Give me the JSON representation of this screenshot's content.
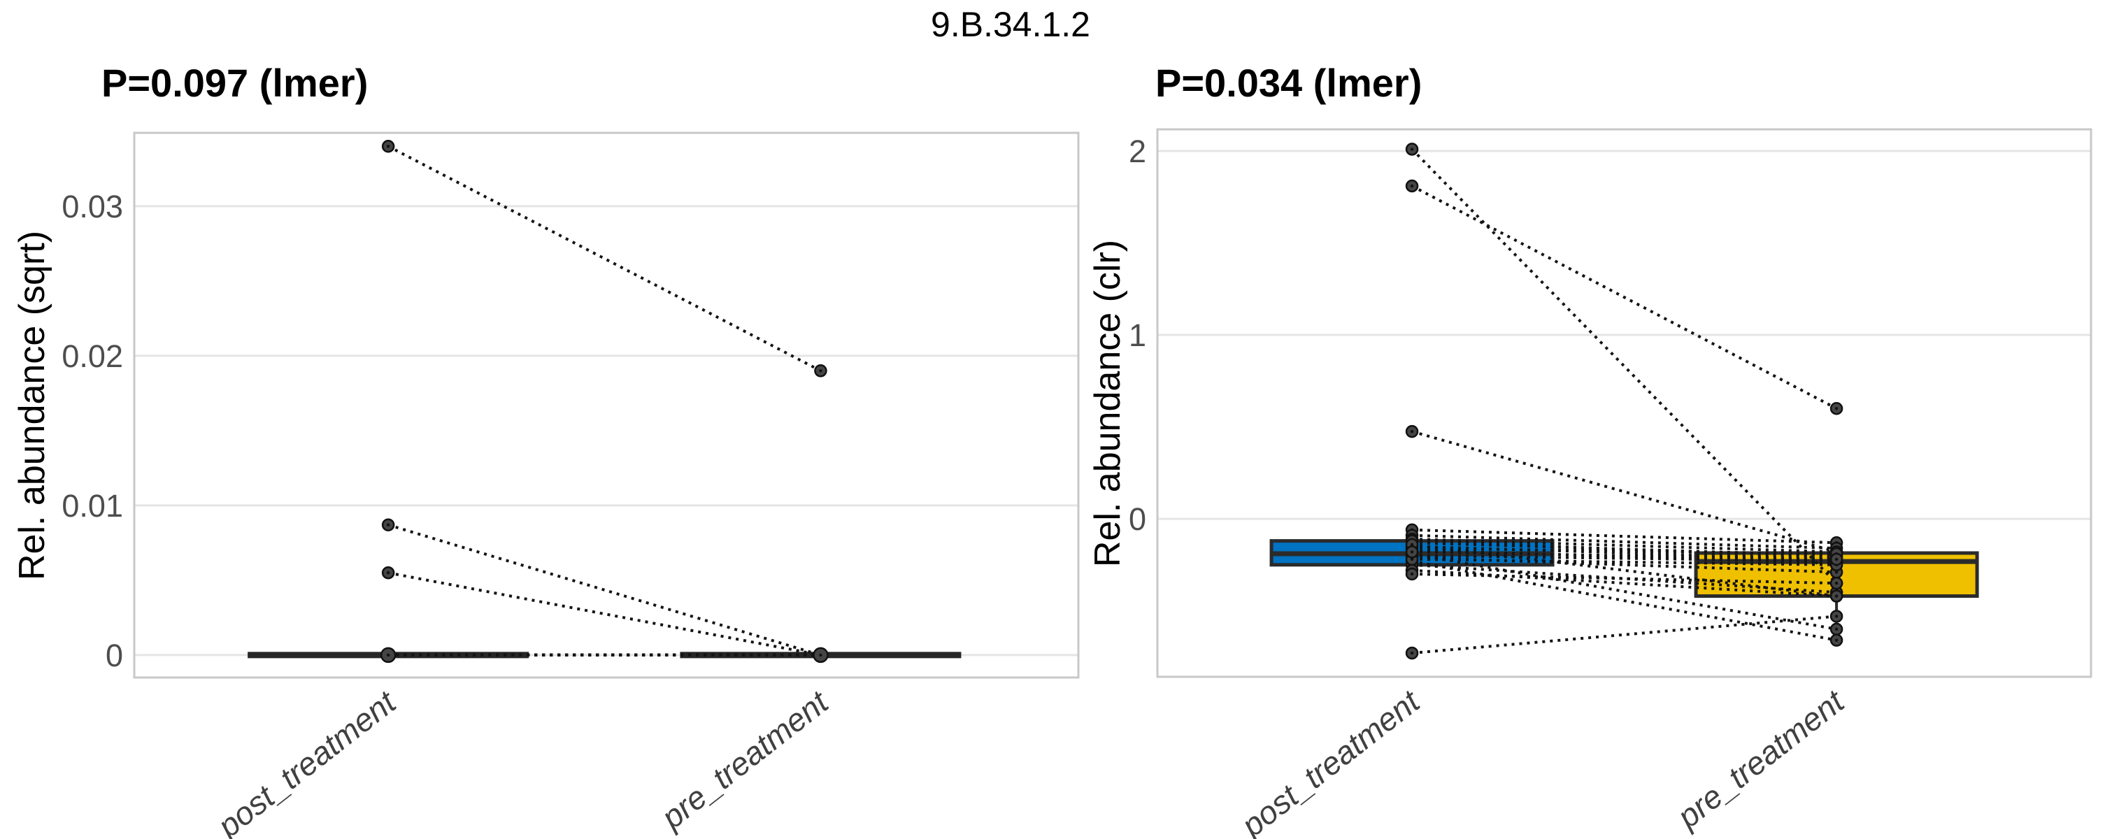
{
  "figure": {
    "title": "9.B.34.1.2",
    "background": "#ffffff"
  },
  "colors": {
    "post_box_fill": "#0073C2",
    "pre_box_fill": "#EFC000",
    "box_border": "#2b2b2b",
    "collapsed_box_line": "#262626",
    "point_fill": "#454545",
    "point_stroke": "#111111",
    "pair_line": "#141414",
    "grid_line": "#e5e5e5",
    "panel_border": "#c8c8c8",
    "y_tick_label": "#4d4d4d",
    "category_label": "#404040"
  },
  "chart_data": [
    {
      "type": "paired-boxplot",
      "panel": "left",
      "title": "P=0.097 (lmer)",
      "ylabel": "Rel. abundance (sqrt)",
      "xlabel": "",
      "categories": [
        "post_treatment",
        "pre_treatment"
      ],
      "ytick_labels": [
        "0",
        "0.01",
        "0.02",
        "0.03"
      ],
      "yticks": [
        0,
        0.01,
        0.02,
        0.03
      ],
      "ylim": [
        -0.0015,
        0.0349
      ],
      "grid": "horizontal-major-only",
      "legend": "none",
      "boxes": [
        {
          "category": "post_treatment",
          "q1": 0,
          "median": 0,
          "q3": 0,
          "collapsed": true,
          "fill": "none"
        },
        {
          "category": "pre_treatment",
          "q1": 0,
          "median": 0,
          "q3": 0,
          "collapsed": true,
          "fill": "none"
        }
      ],
      "pairs": [
        [
          0.034,
          0.019
        ],
        [
          0.0087,
          0
        ],
        [
          0.0055,
          0
        ]
      ],
      "zero_zero_pairs": 19
    },
    {
      "type": "paired-boxplot",
      "panel": "right",
      "title": "P=0.034 (lmer)",
      "ylabel": "Rel. abundance (clr)",
      "xlabel": "",
      "categories": [
        "post_treatment",
        "pre_treatment"
      ],
      "ytick_labels": [
        "0",
        "1",
        "2"
      ],
      "yticks": [
        0,
        1,
        2
      ],
      "ylim": [
        -0.859,
        2.118
      ],
      "grid": "horizontal-major-only",
      "legend": "none",
      "boxes": [
        {
          "category": "post_treatment",
          "q1": -0.25,
          "median": -0.19,
          "q3": -0.12,
          "collapsed": false,
          "fill": "#0073C2"
        },
        {
          "category": "pre_treatment",
          "q1": -0.42,
          "median": -0.232,
          "q3": -0.186,
          "whisker_low": -0.53,
          "collapsed": false,
          "fill": "#EFC000"
        }
      ],
      "pairs": [
        [
          2.01,
          -0.35
        ],
        [
          1.81,
          0.6
        ],
        [
          0.475,
          -0.18
        ],
        [
          -0.73,
          -0.53
        ],
        [
          -0.06,
          -0.13
        ],
        [
          -0.09,
          -0.16
        ],
        [
          -0.11,
          -0.18
        ],
        [
          -0.13,
          -0.2
        ],
        [
          -0.15,
          -0.22
        ],
        [
          -0.17,
          -0.24
        ],
        [
          -0.19,
          -0.6
        ],
        [
          -0.21,
          -0.29
        ],
        [
          -0.23,
          -0.66
        ],
        [
          -0.25,
          -0.4
        ],
        [
          -0.28,
          -0.42
        ],
        [
          -0.3,
          -0.35
        ],
        [
          -0.12,
          -0.21
        ],
        [
          -0.16,
          -0.19
        ],
        [
          -0.2,
          -0.23
        ],
        [
          -0.14,
          -0.42
        ],
        [
          -0.22,
          -0.25
        ],
        [
          -0.18,
          -0.22
        ]
      ],
      "zero_zero_pairs": 0
    }
  ]
}
